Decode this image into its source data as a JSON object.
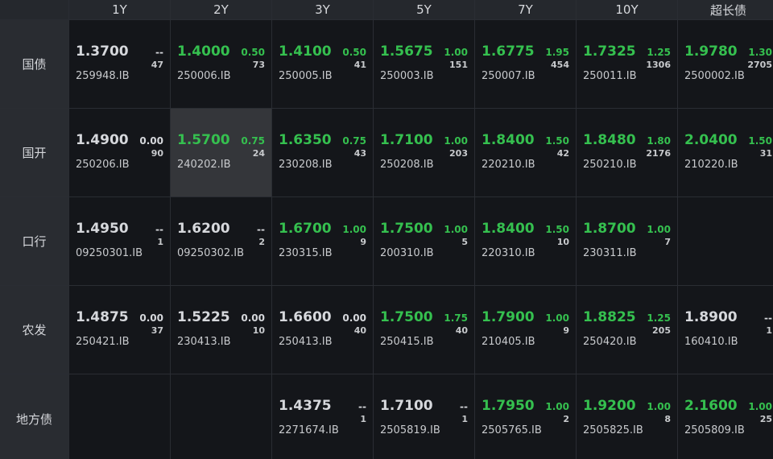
{
  "colors": {
    "up": "#35c04f",
    "neutral": "#d6d8dc"
  },
  "columns": [
    "1Y",
    "2Y",
    "3Y",
    "5Y",
    "7Y",
    "10Y",
    "超长债"
  ],
  "rows": [
    {
      "label": "国债",
      "cells": [
        {
          "price": "1.3700",
          "chg": "--",
          "vol": "47",
          "code": "259948.IB",
          "up": false
        },
        {
          "price": "1.4000",
          "chg": "0.50",
          "vol": "73",
          "code": "250006.IB",
          "up": true
        },
        {
          "price": "1.4100",
          "chg": "0.50",
          "vol": "41",
          "code": "250005.IB",
          "up": true
        },
        {
          "price": "1.5675",
          "chg": "1.00",
          "vol": "151",
          "code": "250003.IB",
          "up": true
        },
        {
          "price": "1.6775",
          "chg": "1.95",
          "vol": "454",
          "code": "250007.IB",
          "up": true
        },
        {
          "price": "1.7325",
          "chg": "1.25",
          "vol": "1306",
          "code": "250011.IB",
          "up": true
        },
        {
          "price": "1.9780",
          "chg": "1.30",
          "vol": "2705",
          "code": "2500002.IB",
          "up": true
        }
      ]
    },
    {
      "label": "国开",
      "cells": [
        {
          "price": "1.4900",
          "chg": "0.00",
          "vol": "90",
          "code": "250206.IB",
          "up": false
        },
        {
          "price": "1.5700",
          "chg": "0.75",
          "vol": "24",
          "code": "240202.IB",
          "up": true,
          "highlight": true
        },
        {
          "price": "1.6350",
          "chg": "0.75",
          "vol": "43",
          "code": "230208.IB",
          "up": true
        },
        {
          "price": "1.7100",
          "chg": "1.00",
          "vol": "203",
          "code": "250208.IB",
          "up": true
        },
        {
          "price": "1.8400",
          "chg": "1.50",
          "vol": "42",
          "code": "220210.IB",
          "up": true
        },
        {
          "price": "1.8480",
          "chg": "1.80",
          "vol": "2176",
          "code": "250210.IB",
          "up": true
        },
        {
          "price": "2.0400",
          "chg": "1.50",
          "vol": "31",
          "code": "210220.IB",
          "up": true
        }
      ]
    },
    {
      "label": "口行",
      "cells": [
        {
          "price": "1.4950",
          "chg": "--",
          "vol": "1",
          "code": "09250301.IB",
          "up": false
        },
        {
          "price": "1.6200",
          "chg": "--",
          "vol": "2",
          "code": "09250302.IB",
          "up": false
        },
        {
          "price": "1.6700",
          "chg": "1.00",
          "vol": "9",
          "code": "230315.IB",
          "up": true
        },
        {
          "price": "1.7500",
          "chg": "1.00",
          "vol": "5",
          "code": "200310.IB",
          "up": true
        },
        {
          "price": "1.8400",
          "chg": "1.50",
          "vol": "10",
          "code": "220310.IB",
          "up": true
        },
        {
          "price": "1.8700",
          "chg": "1.00",
          "vol": "7",
          "code": "230311.IB",
          "up": true
        },
        null
      ]
    },
    {
      "label": "农发",
      "cells": [
        {
          "price": "1.4875",
          "chg": "0.00",
          "vol": "37",
          "code": "250421.IB",
          "up": false
        },
        {
          "price": "1.5225",
          "chg": "0.00",
          "vol": "10",
          "code": "230413.IB",
          "up": false
        },
        {
          "price": "1.6600",
          "chg": "0.00",
          "vol": "40",
          "code": "250413.IB",
          "up": false
        },
        {
          "price": "1.7500",
          "chg": "1.75",
          "vol": "40",
          "code": "250415.IB",
          "up": true
        },
        {
          "price": "1.7900",
          "chg": "1.00",
          "vol": "9",
          "code": "210405.IB",
          "up": true
        },
        {
          "price": "1.8825",
          "chg": "1.25",
          "vol": "205",
          "code": "250420.IB",
          "up": true
        },
        {
          "price": "1.8900",
          "chg": "--",
          "vol": "1",
          "code": "160410.IB",
          "up": false
        }
      ]
    },
    {
      "label": "地方债",
      "cells": [
        null,
        null,
        {
          "price": "1.4375",
          "chg": "--",
          "vol": "1",
          "code": "2271674.IB",
          "up": false
        },
        {
          "price": "1.7100",
          "chg": "--",
          "vol": "1",
          "code": "2505819.IB",
          "up": false
        },
        {
          "price": "1.7950",
          "chg": "1.00",
          "vol": "2",
          "code": "2505765.IB",
          "up": true
        },
        {
          "price": "1.9200",
          "chg": "1.00",
          "vol": "8",
          "code": "2505825.IB",
          "up": true
        },
        {
          "price": "2.1600",
          "chg": "1.00",
          "vol": "25",
          "code": "2505809.IB",
          "up": true
        }
      ]
    }
  ]
}
